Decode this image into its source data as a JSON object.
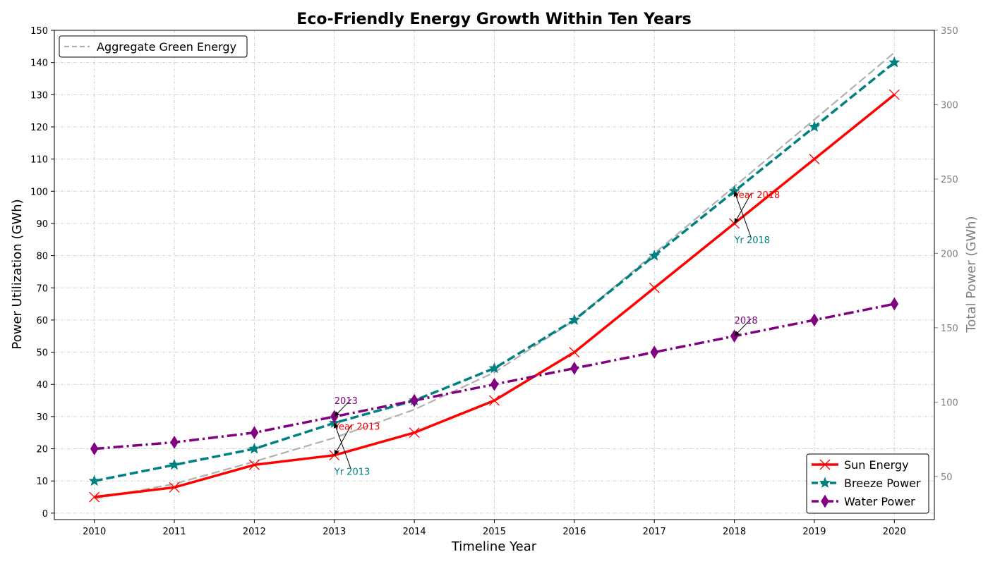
{
  "chart_data": {
    "type": "line",
    "title": "Eco-Friendly Energy Growth Within Ten Years",
    "xlabel": "Timeline Year",
    "ylabel": "Power Utilization (GWh)",
    "ylabel_right": "Total Power (GWh)",
    "x": [
      2010,
      2011,
      2012,
      2013,
      2014,
      2015,
      2016,
      2017,
      2018,
      2019,
      2020
    ],
    "ylim": [
      -2,
      150
    ],
    "ylim_right": [
      21,
      350
    ],
    "yticks": [
      0,
      10,
      20,
      30,
      40,
      50,
      60,
      70,
      80,
      90,
      100,
      110,
      120,
      130,
      140,
      150
    ],
    "yticks_right": [
      50,
      100,
      150,
      200,
      250,
      300,
      350
    ],
    "grid": true,
    "series": [
      {
        "name": "Sun Energy",
        "values": [
          5,
          8,
          15,
          18,
          25,
          35,
          50,
          70,
          90,
          110,
          130
        ],
        "color": "#ff0000",
        "marker": "x",
        "linestyle": "solid",
        "axis": "left"
      },
      {
        "name": "Breeze Power",
        "values": [
          10,
          15,
          20,
          28,
          35,
          45,
          60,
          80,
          100,
          120,
          140
        ],
        "color": "#008080",
        "marker": "star",
        "linestyle": "dashed",
        "axis": "left"
      },
      {
        "name": "Water Power",
        "values": [
          20,
          22,
          25,
          30,
          35,
          40,
          45,
          50,
          55,
          60,
          65
        ],
        "color": "#800080",
        "marker": "diamond",
        "linestyle": "dashdot",
        "axis": "left"
      },
      {
        "name": "Aggregate Green Energy",
        "values": [
          35,
          45,
          60,
          76,
          95,
          120,
          155,
          200,
          245,
          290,
          335
        ],
        "color": "#b0b0b0",
        "marker": "none",
        "linestyle": "dashed",
        "axis": "right"
      }
    ],
    "annotations": [
      {
        "text": "Year 2013",
        "x": 2013,
        "y": 18,
        "text_x": 2013,
        "text_y": 27,
        "color": "#ff0000"
      },
      {
        "text": "Yr 2013",
        "x": 2013,
        "y": 28,
        "text_x": 2013,
        "text_y": 13,
        "color": "#008080"
      },
      {
        "text": "2013",
        "x": 2013,
        "y": 30,
        "text_x": 2013,
        "text_y": 35,
        "color": "#800080"
      },
      {
        "text": "Year 2018",
        "x": 2018,
        "y": 90,
        "text_x": 2018,
        "text_y": 99,
        "color": "#ff0000"
      },
      {
        "text": "Yr 2018",
        "x": 2018,
        "y": 100,
        "text_x": 2018,
        "text_y": 85,
        "color": "#008080"
      },
      {
        "text": "2018",
        "x": 2018,
        "y": 55,
        "text_x": 2018,
        "text_y": 60,
        "color": "#800080"
      }
    ],
    "legend_left": {
      "placement": "upper-left",
      "entries": [
        "Aggregate Green Energy"
      ]
    },
    "legend_right": {
      "placement": "lower-right",
      "entries": [
        "Sun Energy",
        "Breeze Power",
        "Water Power"
      ]
    }
  }
}
